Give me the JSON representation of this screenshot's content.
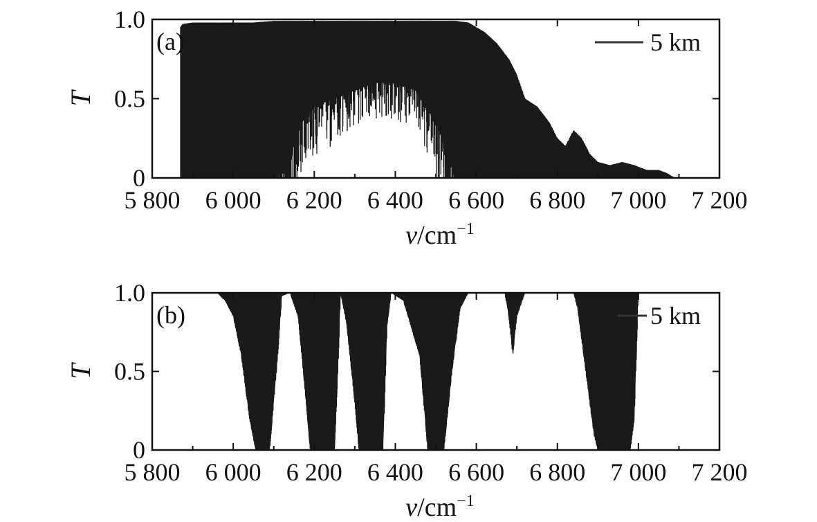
{
  "chart_data": [
    {
      "type": "line",
      "panel": "(a)",
      "xlabel_var": "v",
      "xlabel_unit": "/cm",
      "xlabel_exp": "−1",
      "ylabel": "T",
      "xlim": [
        5800,
        7200
      ],
      "ylim": [
        0,
        1.0
      ],
      "xticks": [
        5800,
        6000,
        6200,
        6400,
        6600,
        6800,
        7000,
        7200
      ],
      "xtick_labels": [
        "5 800",
        "6 000",
        "6 200",
        "6 400",
        "6 600",
        "6 800",
        "7 000",
        "7 200"
      ],
      "yticks": [
        0,
        0.5,
        1.0
      ],
      "ytick_labels": [
        "0",
        "0.5",
        "1.0"
      ],
      "legend": {
        "label": "5 km",
        "position": "top-right"
      },
      "color": "#1a1a1a",
      "series": [
        {
          "name": "5 km",
          "lower_envelope": [
            [
              5870,
              0.0
            ],
            [
              5875,
              0.0
            ],
            [
              5900,
              0.0
            ],
            [
              5950,
              0.0
            ],
            [
              6000,
              0.0
            ],
            [
              6050,
              0.0
            ],
            [
              6100,
              0.0
            ],
            [
              6140,
              0.05
            ],
            [
              6150,
              0.22
            ],
            [
              6170,
              0.35
            ],
            [
              6200,
              0.45
            ],
            [
              6250,
              0.5
            ],
            [
              6300,
              0.55
            ],
            [
              6350,
              0.6
            ],
            [
              6400,
              0.6
            ],
            [
              6450,
              0.55
            ],
            [
              6500,
              0.35
            ],
            [
              6530,
              0.15
            ],
            [
              6545,
              0.0
            ],
            [
              6600,
              0.0
            ],
            [
              6650,
              0.0
            ],
            [
              6700,
              0.0
            ],
            [
              6750,
              0.0
            ],
            [
              6800,
              0.0
            ],
            [
              6850,
              0.0
            ],
            [
              6900,
              0.0
            ],
            [
              6950,
              0.0
            ],
            [
              7000,
              0.0
            ],
            [
              7050,
              0.0
            ]
          ],
          "upper_envelope": [
            [
              5870,
              0.95
            ],
            [
              5875,
              0.97
            ],
            [
              5900,
              0.98
            ],
            [
              5950,
              0.98
            ],
            [
              6000,
              0.98
            ],
            [
              6050,
              0.98
            ],
            [
              6100,
              0.99
            ],
            [
              6150,
              0.99
            ],
            [
              6200,
              0.99
            ],
            [
              6250,
              0.99
            ],
            [
              6300,
              0.99
            ],
            [
              6350,
              0.99
            ],
            [
              6400,
              0.99
            ],
            [
              6450,
              0.99
            ],
            [
              6500,
              0.99
            ],
            [
              6550,
              0.99
            ],
            [
              6580,
              0.98
            ],
            [
              6600,
              0.95
            ],
            [
              6620,
              0.92
            ],
            [
              6650,
              0.85
            ],
            [
              6680,
              0.75
            ],
            [
              6700,
              0.65
            ],
            [
              6720,
              0.5
            ],
            [
              6750,
              0.45
            ],
            [
              6780,
              0.35
            ],
            [
              6800,
              0.25
            ],
            [
              6820,
              0.2
            ],
            [
              6840,
              0.3
            ],
            [
              6860,
              0.25
            ],
            [
              6880,
              0.15
            ],
            [
              6900,
              0.1
            ],
            [
              6930,
              0.08
            ],
            [
              6960,
              0.1
            ],
            [
              6990,
              0.08
            ],
            [
              7020,
              0.05
            ],
            [
              7050,
              0.05
            ],
            [
              7070,
              0.03
            ],
            [
              7090,
              0.0
            ]
          ]
        }
      ]
    },
    {
      "type": "line",
      "panel": "(b)",
      "xlabel_var": "v",
      "xlabel_unit": "/cm",
      "xlabel_exp": "−1",
      "ylabel": "T",
      "xlim": [
        5800,
        7200
      ],
      "ylim": [
        0,
        1.0
      ],
      "xticks": [
        5800,
        6000,
        6200,
        6400,
        6600,
        6800,
        7000,
        7200
      ],
      "xtick_labels": [
        "5 800",
        "6 000",
        "6 200",
        "6 400",
        "6 600",
        "6 800",
        "7 000",
        "7 200"
      ],
      "yticks": [
        0,
        0.5,
        1.0
      ],
      "ytick_labels": [
        "0",
        "0.5",
        "1.0"
      ],
      "legend": {
        "label": "5 km",
        "position": "top-right"
      },
      "color": "#1a1a1a",
      "series": [
        {
          "name": "5 km",
          "lower_envelope": [
            [
              5870,
              1.0
            ],
            [
              5960,
              1.0
            ],
            [
              5980,
              0.95
            ],
            [
              6000,
              0.85
            ],
            [
              6020,
              0.6
            ],
            [
              6040,
              0.2
            ],
            [
              6055,
              0.0
            ],
            [
              6090,
              0.0
            ],
            [
              6110,
              0.6
            ],
            [
              6120,
              0.98
            ],
            [
              6140,
              1.0
            ],
            [
              6160,
              0.85
            ],
            [
              6180,
              0.3
            ],
            [
              6190,
              0.0
            ],
            [
              6250,
              0.0
            ],
            [
              6260,
              0.6
            ],
            [
              6265,
              1.0
            ],
            [
              6280,
              0.8
            ],
            [
              6300,
              0.3
            ],
            [
              6310,
              0.0
            ],
            [
              6370,
              0.0
            ],
            [
              6380,
              0.8
            ],
            [
              6390,
              1.0
            ],
            [
              6420,
              0.95
            ],
            [
              6460,
              0.6
            ],
            [
              6480,
              0.0
            ],
            [
              6520,
              0.0
            ],
            [
              6540,
              0.5
            ],
            [
              6560,
              0.9
            ],
            [
              6580,
              1.0
            ],
            [
              6670,
              1.0
            ],
            [
              6680,
              0.85
            ],
            [
              6690,
              0.6
            ],
            [
              6700,
              0.85
            ],
            [
              6720,
              1.0
            ],
            [
              6840,
              1.0
            ],
            [
              6850,
              0.9
            ],
            [
              6870,
              0.5
            ],
            [
              6890,
              0.1
            ],
            [
              6900,
              0.0
            ],
            [
              6980,
              0.0
            ],
            [
              6990,
              0.2
            ],
            [
              7000,
              1.0
            ],
            [
              7200,
              1.0
            ]
          ],
          "upper_envelope": [
            [
              5870,
              1.0
            ],
            [
              7200,
              1.0
            ]
          ]
        }
      ]
    }
  ]
}
